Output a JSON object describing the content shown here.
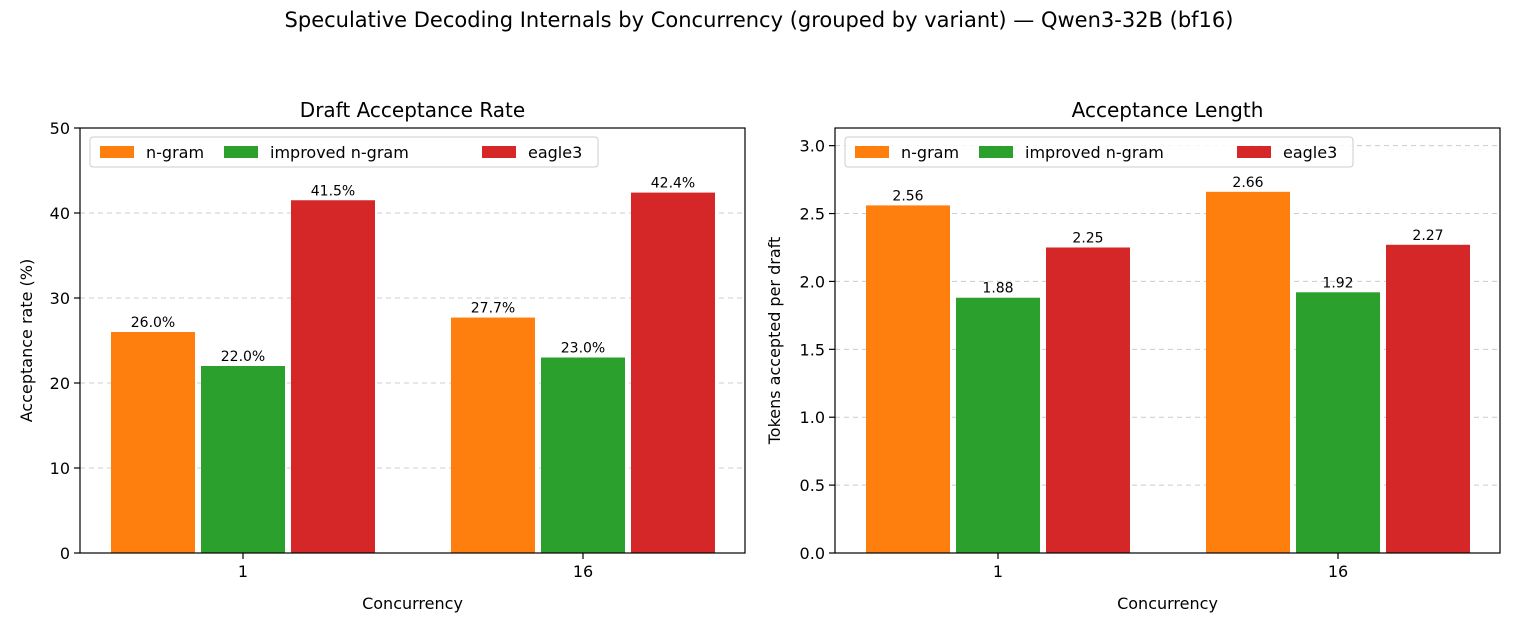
{
  "figure": {
    "title": "Speculative Decoding Internals by Concurrency (grouped by variant) — Qwen3-32B (bf16)"
  },
  "colors": {
    "n-gram": "#ff7f0e",
    "improved n-gram": "#2ca02c",
    "eagle3": "#d62728",
    "grid": "#cccccc",
    "axes": "#000000"
  },
  "chart_data": [
    {
      "type": "bar",
      "title": "Draft Acceptance Rate",
      "xlabel": "Concurrency",
      "ylabel": "Acceptance rate (%)",
      "categories": [
        "1",
        "16"
      ],
      "ylim": [
        0,
        50
      ],
      "yticks": [
        0,
        10,
        20,
        30,
        40,
        50
      ],
      "ytick_labels": [
        "0",
        "10",
        "20",
        "30",
        "40",
        "50"
      ],
      "grid": "y-dashed",
      "legend": "top-left",
      "series": [
        {
          "name": "n-gram",
          "values": [
            26.0,
            27.7
          ],
          "labels": [
            "26.0%",
            "27.7%"
          ]
        },
        {
          "name": "improved n-gram",
          "values": [
            22.0,
            23.0
          ],
          "labels": [
            "22.0%",
            "23.0%"
          ]
        },
        {
          "name": "eagle3",
          "values": [
            41.5,
            42.4
          ],
          "labels": [
            "41.5%",
            "42.4%"
          ]
        }
      ]
    },
    {
      "type": "bar",
      "title": "Acceptance Length",
      "xlabel": "Concurrency",
      "ylabel": "Tokens accepted per draft",
      "categories": [
        "1",
        "16"
      ],
      "ylim": [
        0,
        3.13
      ],
      "yticks": [
        0,
        0.5,
        1.0,
        1.5,
        2.0,
        2.5,
        3.0
      ],
      "ytick_labels": [
        "0.0",
        "0.5",
        "1.0",
        "1.5",
        "2.0",
        "2.5",
        "3.0"
      ],
      "grid": "y-dashed",
      "legend": "top-left",
      "series": [
        {
          "name": "n-gram",
          "values": [
            2.56,
            2.66
          ],
          "labels": [
            "2.56",
            "2.66"
          ]
        },
        {
          "name": "improved n-gram",
          "values": [
            1.88,
            1.92
          ],
          "labels": [
            "1.88",
            "1.92"
          ]
        },
        {
          "name": "eagle3",
          "values": [
            2.25,
            2.27
          ],
          "labels": [
            "2.25",
            "2.27"
          ]
        }
      ]
    }
  ]
}
